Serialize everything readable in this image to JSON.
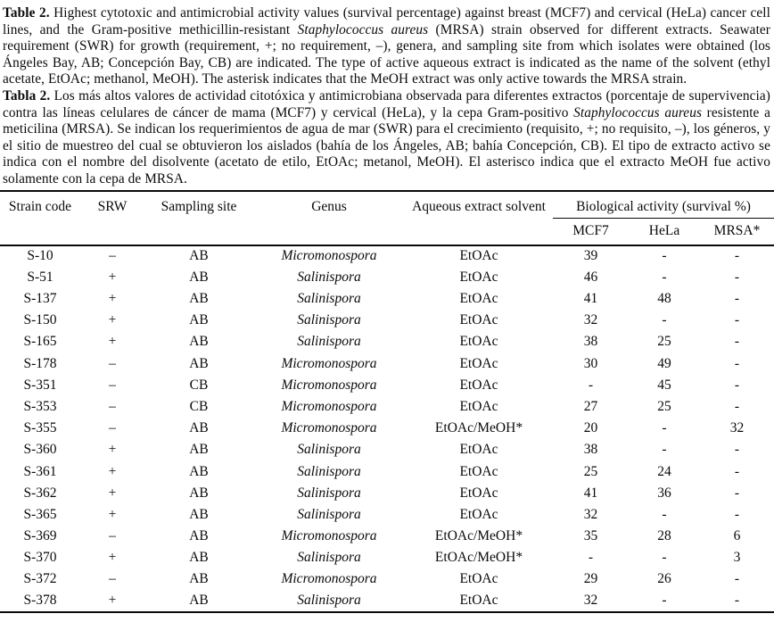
{
  "caption_en": {
    "label": "Table 2.",
    "part1": " Highest cytotoxic and antimicrobial activity values (survival percentage) against breast (MCF7) and cervical (HeLa) cancer cell lines, and the Gram-positive methicillin-resistant ",
    "species": "Staphylococcus aureus",
    "part2": " (MRSA) strain observed for different extracts. Seawater requirement (SWR) for growth (requirement, +; no requirement, –), genera, and sampling site from which isolates were obtained (los Ángeles Bay, AB; Concepción Bay, CB) are indicated. The type of active aqueous extract is indicated as the name of the solvent (ethyl acetate, EtOAc; methanol, MeOH). The asterisk indicates that the MeOH extract was only active towards the MRSA strain."
  },
  "caption_es": {
    "label": "Tabla 2.",
    "part1": " Los más altos valores de actividad citotóxica y antimicrobiana observada para diferentes extractos (porcentaje de supervivencia) contra las líneas celulares de cáncer de mama (MCF7) y cervical (HeLa), y la cepa Gram-positivo ",
    "species": "Staphylococcus aureus",
    "part2": " resistente a meticilina (MRSA). Se indican los requerimientos de agua de mar (SWR) para el crecimiento (requisito, +; no requisito, –), los géneros, y el sitio de muestreo del cual se obtuvieron los aislados (bahía de los Ángeles, AB; bahía Concepción, CB). El tipo de extracto activo se indica con el nombre del disolvente (acetato de etilo, EtOAc; metanol, MeOH). El asterisco indica que el extracto MeOH fue activo solamente con la cepa de MRSA."
  },
  "table": {
    "headers": {
      "strain_code": "Strain code",
      "srw": "SRW",
      "sampling_site": "Sampling site",
      "genus": "Genus",
      "solvent": "Aqueous extract solvent",
      "bio_activity": "Biological activity (survival %)",
      "mcf7": "MCF7",
      "hela": "HeLa",
      "mrsa": "MRSA*"
    },
    "rows": [
      [
        "S-10",
        "–",
        "AB",
        "Micromonospora",
        "EtOAc",
        "39",
        "-",
        "-"
      ],
      [
        "S-51",
        "+",
        "AB",
        "Salinispora",
        "EtOAc",
        "46",
        "-",
        "-"
      ],
      [
        "S-137",
        "+",
        "AB",
        "Salinispora",
        "EtOAc",
        "41",
        "48",
        "-"
      ],
      [
        "S-150",
        "+",
        "AB",
        "Salinispora",
        "EtOAc",
        "32",
        "-",
        "-"
      ],
      [
        "S-165",
        "+",
        "AB",
        "Salinispora",
        "EtOAc",
        "38",
        "25",
        "-"
      ],
      [
        "S-178",
        "–",
        "AB",
        "Micromonospora",
        "EtOAc",
        "30",
        "49",
        "-"
      ],
      [
        "S-351",
        "–",
        "CB",
        "Micromonospora",
        "EtOAc",
        "-",
        "45",
        "-"
      ],
      [
        "S-353",
        "–",
        "CB",
        "Micromonospora",
        "EtOAc",
        "27",
        "25",
        "-"
      ],
      [
        "S-355",
        "–",
        "AB",
        "Micromonospora",
        "EtOAc/MeOH*",
        "20",
        "-",
        "32"
      ],
      [
        "S-360",
        "+",
        "AB",
        "Salinispora",
        "EtOAc",
        "38",
        "-",
        "-"
      ],
      [
        "S-361",
        "+",
        "AB",
        "Salinispora",
        "EtOAc",
        "25",
        "24",
        "-"
      ],
      [
        "S-362",
        "+",
        "AB",
        "Salinispora",
        "EtOAc",
        "41",
        "36",
        "-"
      ],
      [
        "S-365",
        "+",
        "AB",
        "Salinispora",
        "EtOAc",
        "32",
        "-",
        "-"
      ],
      [
        "S-369",
        "–",
        "AB",
        "Micromonospora",
        "EtOAc/MeOH*",
        "35",
        "28",
        "6"
      ],
      [
        "S-370",
        "+",
        "AB",
        "Salinispora",
        "EtOAc/MeOH*",
        "-",
        "-",
        "3"
      ],
      [
        "S-372",
        "–",
        "AB",
        "Micromonospora",
        "EtOAc",
        "29",
        "26",
        "-"
      ],
      [
        "S-378",
        "+",
        "AB",
        "Salinispora",
        "EtOAc",
        "32",
        "-",
        "-"
      ]
    ]
  }
}
